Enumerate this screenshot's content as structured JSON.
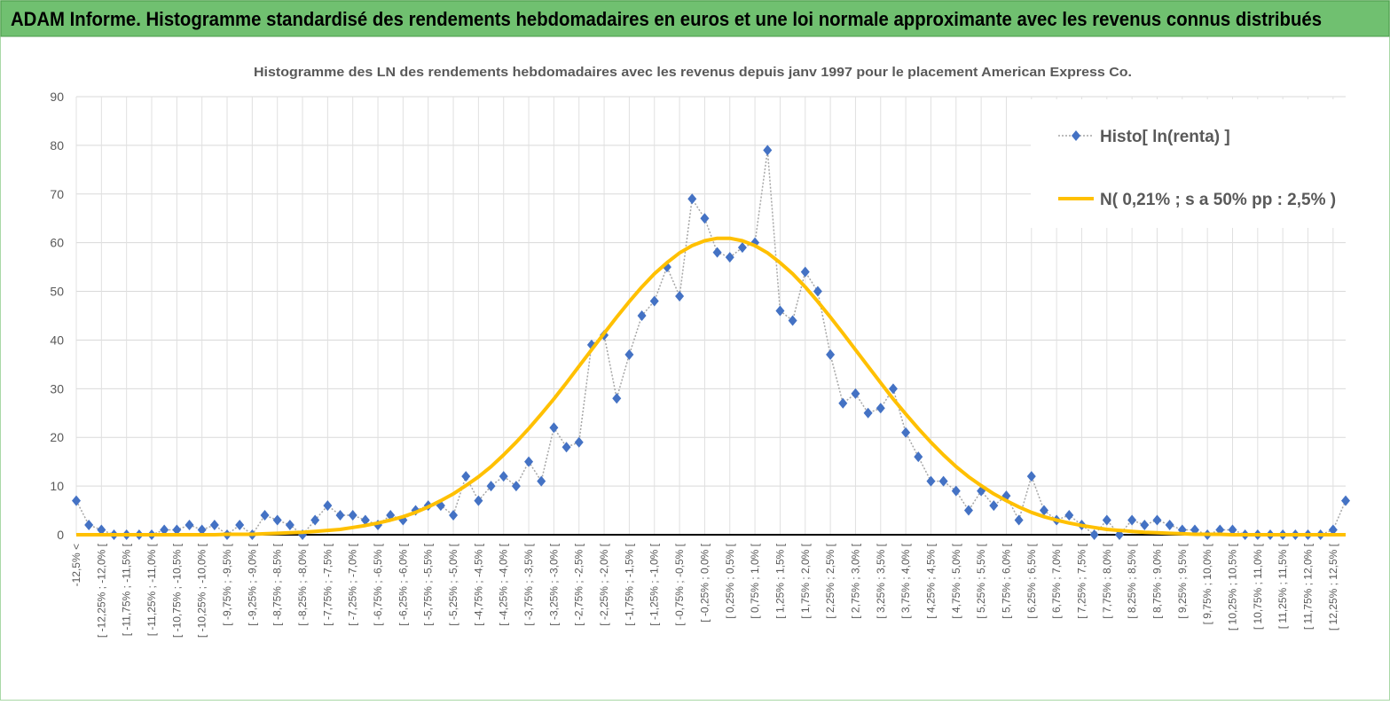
{
  "header": {
    "title": "ADAM Informe. Histogramme standardisé des rendements hebdomadaires en euros et une loi normale approximante avec les revenus connus distribués"
  },
  "chart_data": {
    "type": "line",
    "title": "Histogramme des LN des rendements hebdomadaires avec les revenus depuis janv 1997 pour le placement American Express Co.",
    "categories": [
      "-12,5% <",
      null,
      "[ -12,25% ; -12,0% [",
      null,
      "[ -11,75% ; -11,5% [",
      null,
      "[ -11,25% ; -11,0% [",
      null,
      "[ -10,75% ; -10,5% [",
      null,
      "[ -10,25% ; -10,0% [",
      null,
      "[ -9,75% ; -9,5% [",
      null,
      "[ -9,25% ; -9,0% [",
      null,
      "[ -8,75% ; -8,5% [",
      null,
      "[ -8,25% ; -8,0% [",
      null,
      "[ -7,75% ; -7,5% [",
      null,
      "[ -7,25% ; -7,0% [",
      null,
      "[ -6,75% ; -6,5% [",
      null,
      "[ -6,25% ; -6,0% [",
      null,
      "[ -5,75% ; -5,5% [",
      null,
      "[ -5,25% ; -5,0% [",
      null,
      "[ -4,75% ; -4,5% [",
      null,
      "[ -4,25% ; -4,0% [",
      null,
      "[ -3,75% ; -3,5% [",
      null,
      "[ -3,25% ; -3,0% [",
      null,
      "[ -2,75% ; -2,5% [",
      null,
      "[ -2,25% ; -2,0% [",
      null,
      "[ -1,75% ; -1,5% [",
      null,
      "[ -1,25% ; -1,0% [",
      null,
      "[ -0,75% ; -0,5% [",
      null,
      "[ -0,25% ; 0,0% [",
      null,
      "[ 0,25% ; 0,5% [",
      null,
      "[ 0,75% ; 1,0% [",
      null,
      "[ 1,25% ; 1,5% [",
      null,
      "[ 1,75% ; 2,0% [",
      null,
      "[ 2,25% ; 2,5% [",
      null,
      "[ 2,75% ; 3,0% [",
      null,
      "[ 3,25% ; 3,5% [",
      null,
      "[ 3,75% ; 4,0% [",
      null,
      "[ 4,25% ; 4,5% [",
      null,
      "[ 4,75% ; 5,0% [",
      null,
      "[ 5,25% ; 5,5% [",
      null,
      "[ 5,75% ; 6,0% [",
      null,
      "[ 6,25% ; 6,5% [",
      null,
      "[ 6,75% ; 7,0% [",
      null,
      "[ 7,25% ; 7,5% [",
      null,
      "[ 7,75% ; 8,0% [",
      null,
      "[ 8,25% ; 8,5% [",
      null,
      "[ 8,75% ; 9,0% [",
      null,
      "[ 9,25% ; 9,5% [",
      null,
      "[ 9,75% ; 10,0% [",
      null,
      "[ 10,25% ; 10,5% [",
      null,
      "[ 10,75% ; 11,0% [",
      null,
      "[ 11,25% ; 11,5% [",
      null,
      "[ 11,75% ; 12,0% [",
      null,
      "[ 12,25% ; 12,5% [",
      null
    ],
    "series": [
      {
        "name": "Histo[ ln(renta) ]",
        "color": "#4472c4",
        "values": [
          7,
          2,
          1,
          0,
          0,
          0,
          0,
          1,
          1,
          2,
          1,
          2,
          0,
          2,
          0,
          4,
          3,
          2,
          0,
          3,
          6,
          4,
          4,
          3,
          2,
          4,
          3,
          5,
          6,
          6,
          4,
          12,
          7,
          10,
          12,
          10,
          15,
          11,
          22,
          18,
          19,
          39,
          41,
          28,
          37,
          45,
          48,
          55,
          49,
          69,
          65,
          58,
          57,
          59,
          60,
          79,
          46,
          44,
          54,
          50,
          37,
          27,
          29,
          25,
          26,
          30,
          21,
          16,
          11,
          11,
          9,
          5,
          9,
          6,
          8,
          3,
          12,
          5,
          3,
          4,
          2,
          0,
          3,
          0,
          3,
          2,
          3,
          2,
          1,
          1,
          0,
          1,
          1,
          0,
          0,
          0,
          0,
          0,
          0,
          0,
          1,
          7
        ]
      },
      {
        "name": "N( 0,21% ; s a 50% pp : 2,5% )",
        "color": "#ffc000",
        "values": [
          0,
          0,
          0,
          0,
          0,
          0,
          0,
          0,
          0,
          0,
          0,
          0,
          0.1,
          0.1,
          0.1,
          0.2,
          0.3,
          0.4,
          0.5,
          0.7,
          0.9,
          1.1,
          1.5,
          1.9,
          2.4,
          3.0,
          3.7,
          4.6,
          5.7,
          7.0,
          8.4,
          10.1,
          11.9,
          14.0,
          16.4,
          19.0,
          21.8,
          24.8,
          27.9,
          31.2,
          34.6,
          38.0,
          41.4,
          44.7,
          47.9,
          50.9,
          53.6,
          55.9,
          57.9,
          59.4,
          60.4,
          60.9,
          60.9,
          60.4,
          59.4,
          57.9,
          55.9,
          53.6,
          50.9,
          47.9,
          44.7,
          41.4,
          38.0,
          34.6,
          31.2,
          27.9,
          24.8,
          21.8,
          19.0,
          16.4,
          14.0,
          11.9,
          10.1,
          8.4,
          7.0,
          5.7,
          4.6,
          3.7,
          3.0,
          2.4,
          1.9,
          1.5,
          1.1,
          0.9,
          0.7,
          0.5,
          0.4,
          0.3,
          0.2,
          0.1,
          0.1,
          0.1,
          0,
          0,
          0,
          0,
          0,
          0,
          0,
          0,
          0,
          0
        ]
      }
    ],
    "ylim": [
      0,
      90
    ],
    "yticks": [
      0,
      10,
      20,
      30,
      40,
      50,
      60,
      70,
      80,
      90
    ],
    "grid": true,
    "legend": "top-right"
  }
}
